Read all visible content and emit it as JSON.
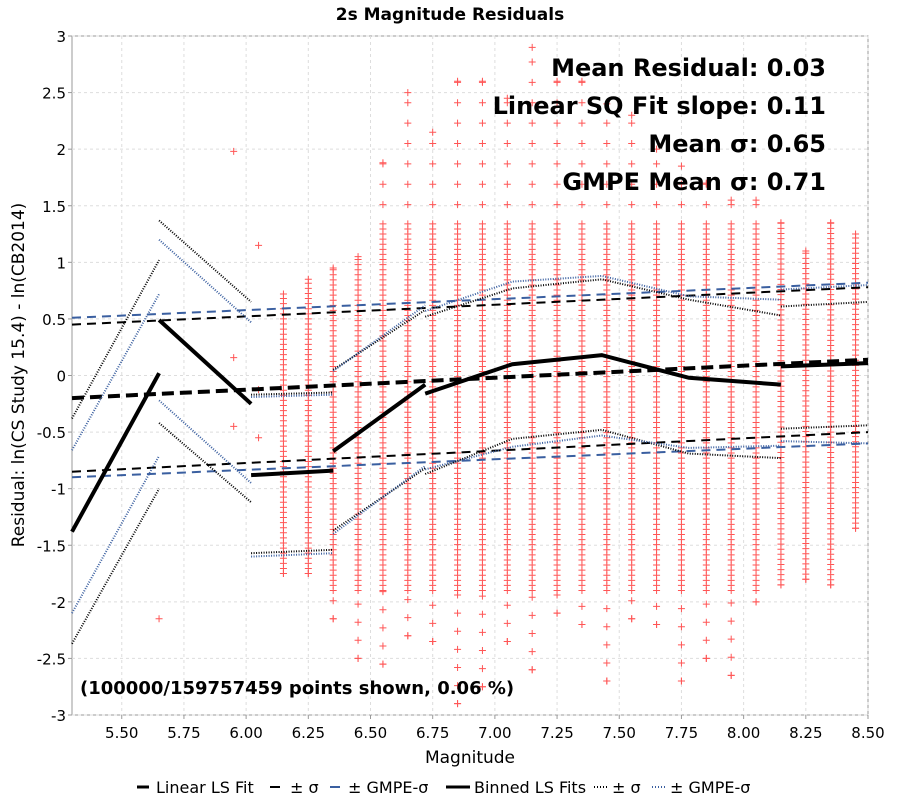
{
  "chart_data": {
    "type": "scatter",
    "title": "2s Magnitude Residuals",
    "xlabel": "Magnitude",
    "ylabel": "Residual: ln(CS Study 15.4) - ln(CB2014)",
    "xlim": [
      5.3,
      8.5
    ],
    "ylim": [
      -3,
      3
    ],
    "x_ticks": [
      "5.50",
      "5.75",
      "6.00",
      "6.25",
      "6.50",
      "6.75",
      "7.00",
      "7.25",
      "7.50",
      "7.75",
      "8.00",
      "8.25",
      "8.50"
    ],
    "y_ticks": [
      "-3",
      "-2.5",
      "-2",
      "-1.5",
      "-1",
      "-0.5",
      "0",
      "0.5",
      "1",
      "1.5",
      "2",
      "2.5",
      "3"
    ],
    "grid": true,
    "annotations": {
      "mean_residual": "Mean Residual: 0.03",
      "slope": "Linear SQ Fit slope: 0.11",
      "mean_sigma": "Mean σ: 0.65",
      "gmpe_sigma": "GMPE Mean σ: 0.71",
      "points_shown": "(100000/159757459 points shown, 0.06 %)"
    },
    "legend": {
      "placement": "bottom",
      "entries": [
        "Linear LS Fit",
        "± σ",
        "± GMPE-σ",
        "Binned LS Fits",
        "± σ",
        "± GMPE-σ"
      ]
    },
    "scatter_columns": [
      {
        "x": 5.65,
        "ymin": -2.15,
        "ymax": -2.15,
        "sparse": true
      },
      {
        "x": 5.95,
        "ymin": -0.45,
        "ymax": 1.98,
        "sparse": true
      },
      {
        "x": 6.05,
        "ymin": -0.55,
        "ymax": 1.15,
        "sparse": true
      },
      {
        "x": 6.15,
        "ymin": -1.75,
        "ymax": 0.72
      },
      {
        "x": 6.25,
        "ymin": -1.75,
        "ymax": 0.85
      },
      {
        "x": 6.35,
        "ymin": -2.15,
        "ymax": 0.95
      },
      {
        "x": 6.45,
        "ymin": -2.5,
        "ymax": 1.05
      },
      {
        "x": 6.55,
        "ymin": -2.55,
        "ymax": 1.88
      },
      {
        "x": 6.65,
        "ymin": -2.3,
        "ymax": 2.5
      },
      {
        "x": 6.75,
        "ymin": -2.35,
        "ymax": 2.15
      },
      {
        "x": 6.85,
        "ymin": -2.9,
        "ymax": 2.6
      },
      {
        "x": 6.95,
        "ymin": -2.75,
        "ymax": 2.6
      },
      {
        "x": 7.05,
        "ymin": -2.35,
        "ymax": 2.45
      },
      {
        "x": 7.15,
        "ymin": -2.6,
        "ymax": 2.9
      },
      {
        "x": 7.25,
        "ymin": -2.1,
        "ymax": 2.6
      },
      {
        "x": 7.35,
        "ymin": -2.2,
        "ymax": 2.6
      },
      {
        "x": 7.45,
        "ymin": -2.7,
        "ymax": 2.4
      },
      {
        "x": 7.55,
        "ymin": -2.15,
        "ymax": 2.3
      },
      {
        "x": 7.65,
        "ymin": -2.2,
        "ymax": 2.0
      },
      {
        "x": 7.75,
        "ymin": -2.7,
        "ymax": 1.85
      },
      {
        "x": 7.85,
        "ymin": -2.5,
        "ymax": 1.7
      },
      {
        "x": 7.95,
        "ymin": -2.65,
        "ymax": 1.55
      },
      {
        "x": 8.05,
        "ymin": -2.0,
        "ymax": 1.55
      },
      {
        "x": 8.15,
        "ymin": -1.85,
        "ymax": 1.35
      },
      {
        "x": 8.25,
        "ymin": -1.8,
        "ymax": 1.1
      },
      {
        "x": 8.35,
        "ymin": -1.85,
        "ymax": 1.35
      },
      {
        "x": 8.45,
        "ymin": -1.35,
        "ymax": 1.25
      }
    ],
    "series": [
      {
        "role": "linear-fit",
        "style": "thick-dash",
        "color": "#000000",
        "x": [
          5.3,
          8.5
        ],
        "y": [
          -0.2,
          0.14
        ]
      },
      {
        "role": "linear-plus-sigma",
        "style": "dash",
        "color": "#000000",
        "x": [
          5.3,
          8.5
        ],
        "y": [
          0.45,
          0.78
        ]
      },
      {
        "role": "linear-minus-sigma",
        "style": "dash",
        "color": "#000000",
        "x": [
          5.3,
          8.5
        ],
        "y": [
          -0.85,
          -0.5
        ]
      },
      {
        "role": "linear-plus-gmpe",
        "style": "dash",
        "color": "#3a5fa0",
        "x": [
          5.3,
          8.5
        ],
        "y": [
          0.51,
          0.82
        ]
      },
      {
        "role": "linear-minus-gmpe",
        "style": "dash",
        "color": "#3a5fa0",
        "x": [
          5.3,
          8.5
        ],
        "y": [
          -0.9,
          -0.6
        ]
      },
      {
        "role": "binned-fit",
        "style": "solid",
        "color": "#000000",
        "x": [
          5.3,
          5.65
        ],
        "y": [
          -1.38,
          0.02
        ]
      },
      {
        "role": "binned-fit",
        "style": "solid",
        "color": "#000000",
        "x": [
          5.65,
          6.02
        ],
        "y": [
          0.49,
          -0.25
        ]
      },
      {
        "role": "binned-fit",
        "style": "solid",
        "color": "#000000",
        "x": [
          6.02,
          6.35
        ],
        "y": [
          -0.88,
          -0.84
        ]
      },
      {
        "role": "binned-fit",
        "style": "solid",
        "color": "#000000",
        "x": [
          6.35,
          6.72
        ],
        "y": [
          -0.67,
          -0.08
        ]
      },
      {
        "role": "binned-fit",
        "style": "solid",
        "color": "#000000",
        "x": [
          6.72,
          7.07,
          7.43,
          7.78,
          8.15
        ],
        "y": [
          -0.16,
          0.1,
          0.18,
          -0.02,
          -0.08
        ]
      },
      {
        "role": "binned-fit",
        "style": "solid",
        "color": "#000000",
        "x": [
          8.15,
          8.5
        ],
        "y": [
          0.08,
          0.11
        ]
      },
      {
        "role": "binned-plus-sigma",
        "style": "dot",
        "color": "#000000",
        "x": [
          5.3,
          5.65
        ],
        "y": [
          -0.38,
          1.02
        ]
      },
      {
        "role": "binned-minus-sigma",
        "style": "dot",
        "color": "#000000",
        "x": [
          5.3,
          5.65
        ],
        "y": [
          -2.37,
          -1.0
        ]
      },
      {
        "role": "binned-plus-sigma",
        "style": "dot",
        "color": "#000000",
        "x": [
          5.65,
          6.02
        ],
        "y": [
          1.37,
          0.65
        ]
      },
      {
        "role": "binned-minus-sigma",
        "style": "dot",
        "color": "#000000",
        "x": [
          5.65,
          6.02
        ],
        "y": [
          -0.42,
          -1.12
        ]
      },
      {
        "role": "binned-plus-sigma",
        "style": "dot",
        "color": "#000000",
        "x": [
          6.02,
          6.35
        ],
        "y": [
          -0.17,
          -0.15
        ]
      },
      {
        "role": "binned-minus-sigma",
        "style": "dot",
        "color": "#000000",
        "x": [
          6.02,
          6.35
        ],
        "y": [
          -1.57,
          -1.54
        ]
      },
      {
        "role": "binned-plus-sigma",
        "style": "dot",
        "color": "#000000",
        "x": [
          6.35,
          6.72
        ],
        "y": [
          0.05,
          0.58
        ]
      },
      {
        "role": "binned-minus-sigma",
        "style": "dot",
        "color": "#000000",
        "x": [
          6.35,
          6.72
        ],
        "y": [
          -1.37,
          -0.82
        ]
      },
      {
        "role": "binned-plus-sigma",
        "style": "dot",
        "color": "#000000",
        "x": [
          6.72,
          7.07,
          7.43,
          7.78,
          8.15
        ],
        "y": [
          0.52,
          0.77,
          0.85,
          0.67,
          0.53
        ]
      },
      {
        "role": "binned-minus-sigma",
        "style": "dot",
        "color": "#000000",
        "x": [
          6.72,
          7.07,
          7.43,
          7.78,
          8.15
        ],
        "y": [
          -0.87,
          -0.56,
          -0.48,
          -0.69,
          -0.73
        ]
      },
      {
        "role": "binned-plus-sigma",
        "style": "dot",
        "color": "#000000",
        "x": [
          8.15,
          8.5
        ],
        "y": [
          0.61,
          0.65
        ]
      },
      {
        "role": "binned-minus-sigma",
        "style": "dot",
        "color": "#000000",
        "x": [
          8.15,
          8.5
        ],
        "y": [
          -0.47,
          -0.44
        ]
      },
      {
        "role": "binned-plus-gmpe",
        "style": "dot",
        "color": "#3a5fa0",
        "x": [
          5.3,
          5.65
        ],
        "y": [
          -0.66,
          0.72
        ]
      },
      {
        "role": "binned-minus-gmpe",
        "style": "dot",
        "color": "#3a5fa0",
        "x": [
          5.3,
          5.65
        ],
        "y": [
          -2.1,
          -0.71
        ]
      },
      {
        "role": "binned-plus-gmpe",
        "style": "dot",
        "color": "#3a5fa0",
        "x": [
          5.65,
          6.02
        ],
        "y": [
          1.2,
          0.47
        ]
      },
      {
        "role": "binned-minus-gmpe",
        "style": "dot",
        "color": "#3a5fa0",
        "x": [
          5.65,
          6.02
        ],
        "y": [
          -0.22,
          -0.95
        ]
      },
      {
        "role": "binned-plus-gmpe",
        "style": "dot",
        "color": "#3a5fa0",
        "x": [
          6.02,
          6.35
        ],
        "y": [
          -0.19,
          -0.17
        ]
      },
      {
        "role": "binned-minus-gmpe",
        "style": "dot",
        "color": "#3a5fa0",
        "x": [
          6.02,
          6.35
        ],
        "y": [
          -1.6,
          -1.57
        ]
      },
      {
        "role": "binned-plus-gmpe",
        "style": "dot",
        "color": "#3a5fa0",
        "x": [
          6.35,
          6.72
        ],
        "y": [
          0.04,
          0.62
        ]
      },
      {
        "role": "binned-minus-gmpe",
        "style": "dot",
        "color": "#3a5fa0",
        "x": [
          6.35,
          6.72
        ],
        "y": [
          -1.4,
          -0.8
        ]
      },
      {
        "role": "binned-plus-gmpe",
        "style": "dot",
        "color": "#3a5fa0",
        "x": [
          6.72,
          7.07,
          7.43,
          7.78,
          8.15
        ],
        "y": [
          0.57,
          0.83,
          0.88,
          0.7,
          0.67
        ]
      },
      {
        "role": "binned-minus-gmpe",
        "style": "dot",
        "color": "#3a5fa0",
        "x": [
          6.72,
          7.07,
          7.43,
          7.78,
          8.15
        ],
        "y": [
          -0.83,
          -0.63,
          -0.53,
          -0.64,
          -0.62
        ]
      },
      {
        "role": "binned-plus-gmpe",
        "style": "dot",
        "color": "#3a5fa0",
        "x": [
          8.15,
          8.5
        ],
        "y": [
          0.76,
          0.8
        ]
      },
      {
        "role": "binned-minus-gmpe",
        "style": "dot",
        "color": "#3a5fa0",
        "x": [
          8.15,
          8.5
        ],
        "y": [
          -0.58,
          -0.6
        ]
      }
    ],
    "colors": {
      "points": "#ff5555",
      "fit": "#000000",
      "gmpe": "#3a5fa0",
      "grid": "#dddddd"
    }
  }
}
